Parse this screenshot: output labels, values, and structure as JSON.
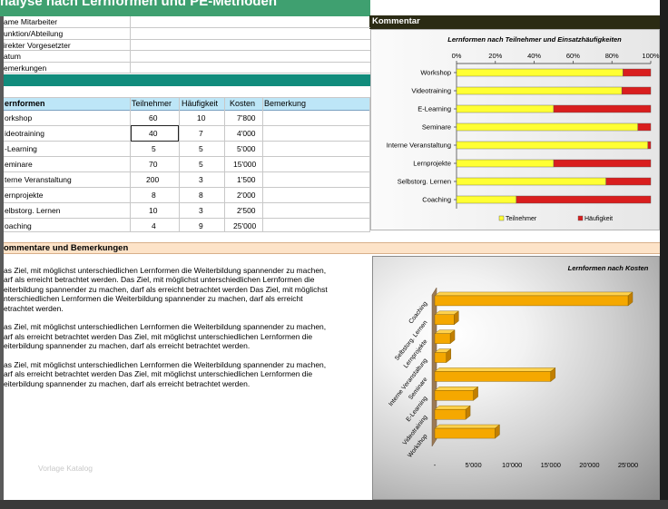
{
  "title": "nalyse nach Lernformen und PE-Methoden",
  "comment_header": "Kommentar",
  "info_rows": [
    {
      "label": "ame Mitarbeiter",
      "value": ""
    },
    {
      "label": "unktion/Abteilung",
      "value": ""
    },
    {
      "label": "irekter Vorgesetzter",
      "value": ""
    },
    {
      "label": "atum",
      "value": ""
    },
    {
      "label": "emerkungen",
      "value": ""
    }
  ],
  "table": {
    "headers": [
      "ernformen",
      "Teilnehmer",
      "Häufigkeit",
      "Kosten",
      "Bemerkung"
    ],
    "rows": [
      {
        "name": "orkshop",
        "teilnehmer": "60",
        "haeufigkeit": "10",
        "kosten": "7'800"
      },
      {
        "name": "ideotraining",
        "teilnehmer": "40",
        "haeufigkeit": "7",
        "kosten": "4'000"
      },
      {
        "name": "-Learning",
        "teilnehmer": "5",
        "haeufigkeit": "5",
        "kosten": "5'000"
      },
      {
        "name": "eminare",
        "teilnehmer": "70",
        "haeufigkeit": "5",
        "kosten": "15'000"
      },
      {
        "name": "terne Veranstaltung",
        "teilnehmer": "200",
        "haeufigkeit": "3",
        "kosten": "1'500"
      },
      {
        "name": "ernprojekte",
        "teilnehmer": "8",
        "haeufigkeit": "8",
        "kosten": "2'000"
      },
      {
        "name": "elbstorg. Lernen",
        "teilnehmer": "10",
        "haeufigkeit": "3",
        "kosten": "2'500"
      },
      {
        "name": "oaching",
        "teilnehmer": "4",
        "haeufigkeit": "9",
        "kosten": "25'000"
      }
    ]
  },
  "comments_section": {
    "title": "ommentare und Bemerkungen",
    "paragraphs": [
      [
        "as Ziel, mit möglichst unterschiedlichen Lernformen die Weiterbildung spannender zu machen,",
        "arf als erreicht betrachtet werden. Das Ziel, mit möglichst unterschiedlichen Lernformen die",
        "eiterbildung spannender zu machen, darf als erreicht betrachtet werden Das Ziel, mit möglichst",
        "nterschiedlichen Lernformen die Weiterbildung spannender zu machen, darf als erreicht",
        "etrachtet werden."
      ],
      [
        "as Ziel, mit möglichst unterschiedlichen Lernformen die Weiterbildung spannender zu machen,",
        "arf als erreicht betrachtet werden Das Ziel, mit möglichst unterschiedlichen Lernformen die",
        "eiterbildung spannender zu machen, darf als erreicht betrachtet werden."
      ],
      [
        "as Ziel, mit möglichst unterschiedlichen Lernformen die Weiterbildung spannender zu machen,",
        "arf als erreicht betrachtet werden Das Ziel, mit möglichst unterschiedlichen Lernformen die",
        "eiterbildung spannender zu machen, darf als erreicht betrachtet werden."
      ]
    ]
  },
  "watermark": "Vorlage Katalog",
  "colors": {
    "title_green": "#3fa070",
    "teal": "#118c7c",
    "yellow": "#ffff33",
    "red": "#d91e1e",
    "orange": "#f5a800"
  },
  "chart_data": [
    {
      "type": "bar",
      "stacked": "percent",
      "orientation": "horizontal",
      "title": "Lernformen nach Teilnehmer und Einsatzhäufigkeiten",
      "categories": [
        "Workshop",
        "Videotraining",
        "E-Learning",
        "Seminare",
        "Interne Veranstaltung",
        "Lernprojekte",
        "Selbstorg. Lernen",
        "Coaching"
      ],
      "series": [
        {
          "name": "Teilnehmer",
          "values": [
            60,
            40,
            5,
            70,
            200,
            8,
            10,
            4
          ],
          "color": "#ffff33"
        },
        {
          "name": "Häufigkeit",
          "values": [
            10,
            7,
            5,
            5,
            3,
            8,
            3,
            9
          ],
          "color": "#d91e1e"
        }
      ],
      "x_ticks": [
        "0%",
        "20%",
        "40%",
        "60%",
        "80%",
        "100%"
      ],
      "legend": "bottom"
    },
    {
      "type": "bar",
      "orientation": "horizontal",
      "style": "3d",
      "title": "Lernformen nach Kosten",
      "categories": [
        "Coaching",
        "Selbstorg. Lernen",
        "Lernprojekte",
        "Interne Veranstaltung",
        "Seminare",
        "E-Learning",
        "Videotraining",
        "Workshop"
      ],
      "values": [
        25000,
        2500,
        2000,
        1500,
        15000,
        5000,
        4000,
        7800
      ],
      "x_ticks": [
        "-",
        "5'000",
        "10'000",
        "15'000",
        "20'000",
        "25'000"
      ],
      "xlim": [
        0,
        25000
      ],
      "color": "#f5a800"
    }
  ]
}
